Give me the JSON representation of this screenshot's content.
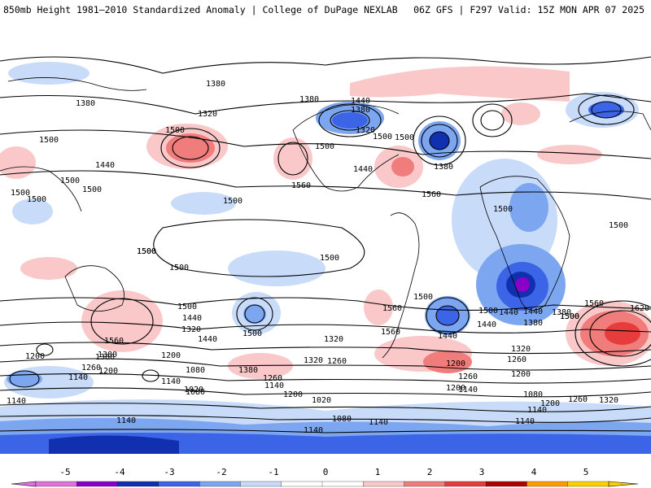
{
  "header": {
    "title": "850mb Height 1981–2010 Standardized Anomaly | College of DuPage NEXLAB",
    "run_info": "06Z GFS | F297 Valid: 15Z MON APR 07 2025"
  },
  "colorbar": {
    "ticks": [
      "-5",
      "-4",
      "-3",
      "-2",
      "-1",
      "0",
      "1",
      "2",
      "3",
      "4",
      "5"
    ],
    "colors": [
      "#e070e0",
      "#8a00c8",
      "#1030b0",
      "#3c64e6",
      "#7ca6f0",
      "#c8dcfa",
      "#ffffff",
      "#ffffff",
      "#fac8c8",
      "#f07c7c",
      "#e63c3c",
      "#b00000",
      "#ff9a00",
      "#ffd000"
    ]
  },
  "contour_labels": [
    "1380",
    "1380",
    "1380",
    "1320",
    "1440",
    "1380",
    "1320",
    "1380",
    "1440",
    "1500",
    "1500",
    "1500",
    "1440",
    "1500",
    "1500",
    "1500",
    "1500",
    "1500",
    "1500",
    "1560",
    "1500",
    "1560",
    "1500",
    "1500",
    "1500",
    "1500",
    "1440",
    "1380",
    "1560",
    "1500",
    "1500",
    "1440",
    "1620",
    "1500",
    "1440",
    "1320",
    "1500",
    "1560",
    "1380",
    "1260",
    "1200",
    "1140",
    "1200",
    "1260",
    "1500",
    "1440",
    "1320",
    "1200",
    "1140",
    "1080",
    "1380",
    "1260",
    "1200",
    "1140",
    "1080",
    "1020",
    "1020",
    "1140",
    "1080",
    "1200",
    "1260",
    "1320",
    "1440",
    "1380",
    "1500",
    "1560",
    "1320",
    "1200",
    "1260",
    "1140",
    "1140",
    "1080",
    "1140",
    "1200",
    "1260",
    "1320",
    "1140",
    "1140",
    "1140",
    "1500",
    "1500",
    "1560",
    "1440",
    "1380",
    "1200"
  ]
}
